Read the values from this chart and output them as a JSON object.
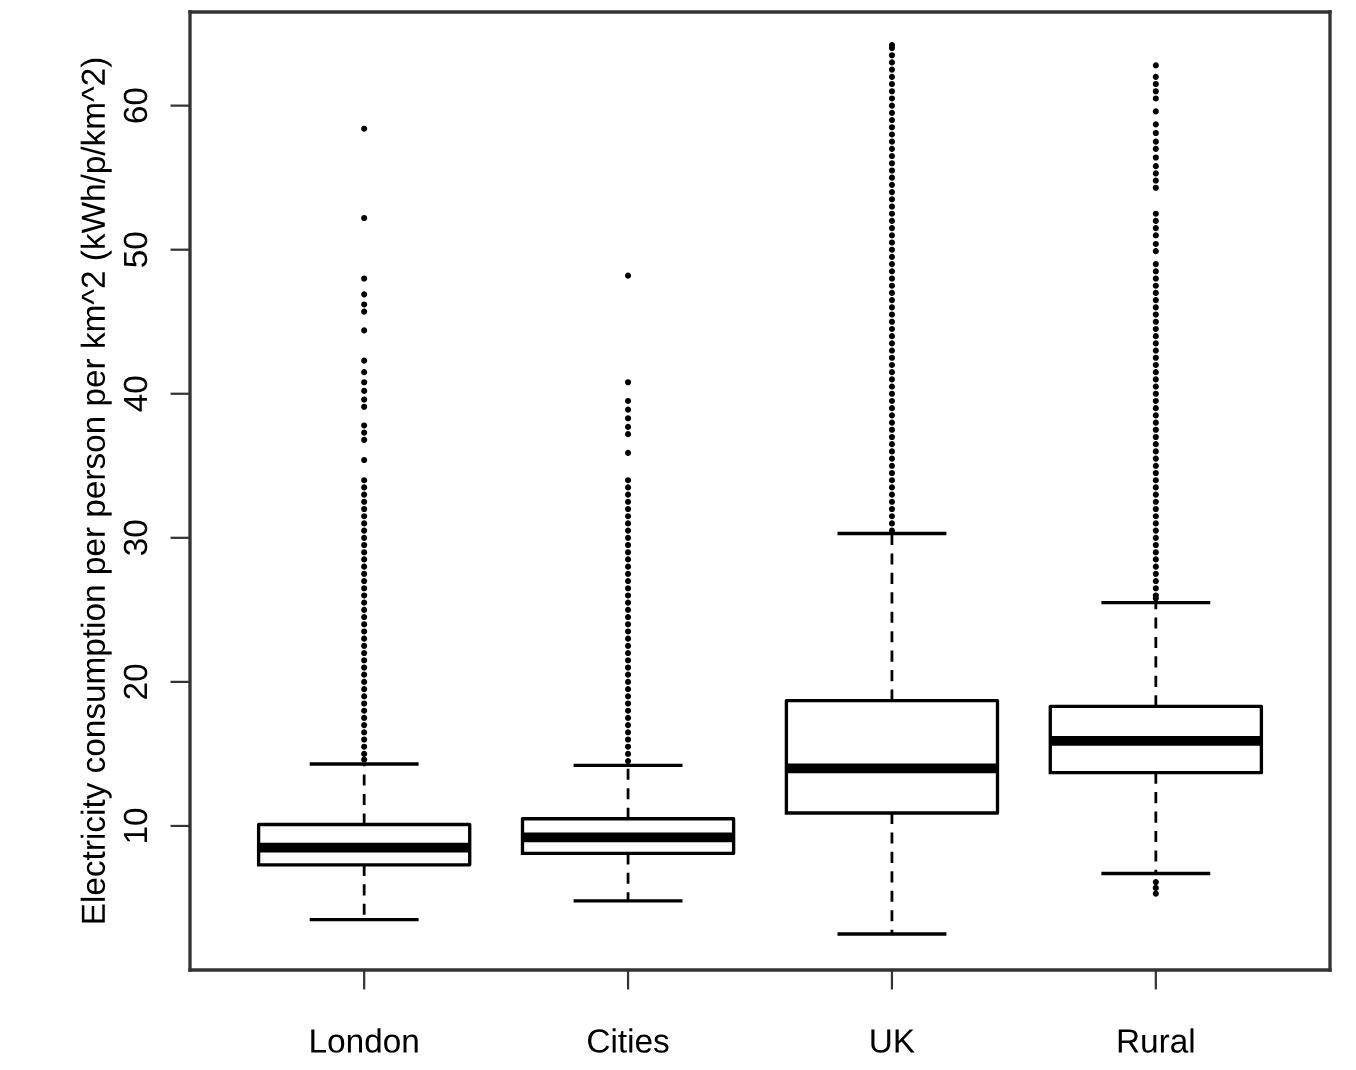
{
  "chart_data": {
    "type": "box",
    "ylabel": "Electricity consumption per person per km^2 (kWh/p/km^2)",
    "categories": [
      "London",
      "Cities",
      "UK",
      "Rural"
    ],
    "ylim": [
      0.0,
      66.5
    ],
    "yticks": [
      10,
      20,
      30,
      40,
      50,
      60
    ],
    "grid": false,
    "legend": false,
    "boxes": [
      {
        "low": 3.5,
        "q1": 7.3,
        "median": 8.5,
        "q3": 10.1,
        "high": 14.3,
        "outliers": [
          14.6,
          15.0,
          15.5,
          16.0,
          16.5,
          17.0,
          17.5,
          18.0,
          18.5,
          19.0,
          19.5,
          20.0,
          20.5,
          21.0,
          21.5,
          22.0,
          22.5,
          23.0,
          23.5,
          24.0,
          24.5,
          25.0,
          25.5,
          26.0,
          26.5,
          27.0,
          27.5,
          28.0,
          28.5,
          29.0,
          29.5,
          30.0,
          30.5,
          31.0,
          31.5,
          32.0,
          32.5,
          33.0,
          33.5,
          34.0,
          35.4,
          36.8,
          37.3,
          37.8,
          39.1,
          39.6,
          40.2,
          40.8,
          41.5,
          42.3,
          44.4,
          45.7,
          46.2,
          46.9,
          48.0,
          52.2,
          58.4
        ]
      },
      {
        "low": 4.8,
        "q1": 8.1,
        "median": 9.2,
        "q3": 10.5,
        "high": 14.2,
        "outliers": [
          14.5,
          15.0,
          15.5,
          16.0,
          16.5,
          17.0,
          17.5,
          18.0,
          18.5,
          19.0,
          19.5,
          20.0,
          20.5,
          21.0,
          21.5,
          22.0,
          22.5,
          23.0,
          23.5,
          24.0,
          24.5,
          25.0,
          25.5,
          26.0,
          26.5,
          27.0,
          27.5,
          28.0,
          28.5,
          29.0,
          29.5,
          30.0,
          30.5,
          31.0,
          31.5,
          32.0,
          32.5,
          33.0,
          33.5,
          34.0,
          35.9,
          37.2,
          37.7,
          38.3,
          38.9,
          39.5,
          40.8,
          48.2
        ]
      },
      {
        "low": 2.5,
        "q1": 10.9,
        "median": 14.0,
        "q3": 18.7,
        "high": 30.3,
        "outliers": [
          30.5,
          31.0,
          31.5,
          32.0,
          32.5,
          33.0,
          33.5,
          34.0,
          34.5,
          35.0,
          35.5,
          36.0,
          36.5,
          37.0,
          37.5,
          38.0,
          38.5,
          39.0,
          39.5,
          40.0,
          40.5,
          41.0,
          41.5,
          42.0,
          42.5,
          43.0,
          43.5,
          44.0,
          44.5,
          45.0,
          45.5,
          46.0,
          46.5,
          47.0,
          47.5,
          48.0,
          48.5,
          49.0,
          49.5,
          50.0,
          50.5,
          51.0,
          51.5,
          52.0,
          52.5,
          53.0,
          53.5,
          54.0,
          54.5,
          55.0,
          55.5,
          56.0,
          56.5,
          57.0,
          57.5,
          58.0,
          58.5,
          59.0,
          59.5,
          60.0,
          60.5,
          61.0,
          61.5,
          62.0,
          62.5,
          63.0,
          63.5,
          64.0,
          64.2
        ]
      },
      {
        "low": 6.7,
        "q1": 13.7,
        "median": 15.9,
        "q3": 18.3,
        "high": 25.5,
        "outliers": [
          5.3,
          5.7,
          6.1,
          25.8,
          26.0,
          26.5,
          27.0,
          27.5,
          28.0,
          28.5,
          29.0,
          29.5,
          30.0,
          30.5,
          31.0,
          31.5,
          32.0,
          32.5,
          33.0,
          33.5,
          34.0,
          34.5,
          35.0,
          35.5,
          36.0,
          36.5,
          37.0,
          37.5,
          38.0,
          38.5,
          39.0,
          39.5,
          40.0,
          40.5,
          41.0,
          41.5,
          42.0,
          42.5,
          43.0,
          43.5,
          44.0,
          44.5,
          45.0,
          45.5,
          46.0,
          46.5,
          47.0,
          47.5,
          48.0,
          48.5,
          49.0,
          49.9,
          50.4,
          51.0,
          51.5,
          52.0,
          52.5,
          54.3,
          54.8,
          55.3,
          55.8,
          56.4,
          57.0,
          57.5,
          58.1,
          58.7,
          59.6,
          60.5,
          61.0,
          61.5,
          62.0,
          62.8
        ]
      }
    ]
  }
}
